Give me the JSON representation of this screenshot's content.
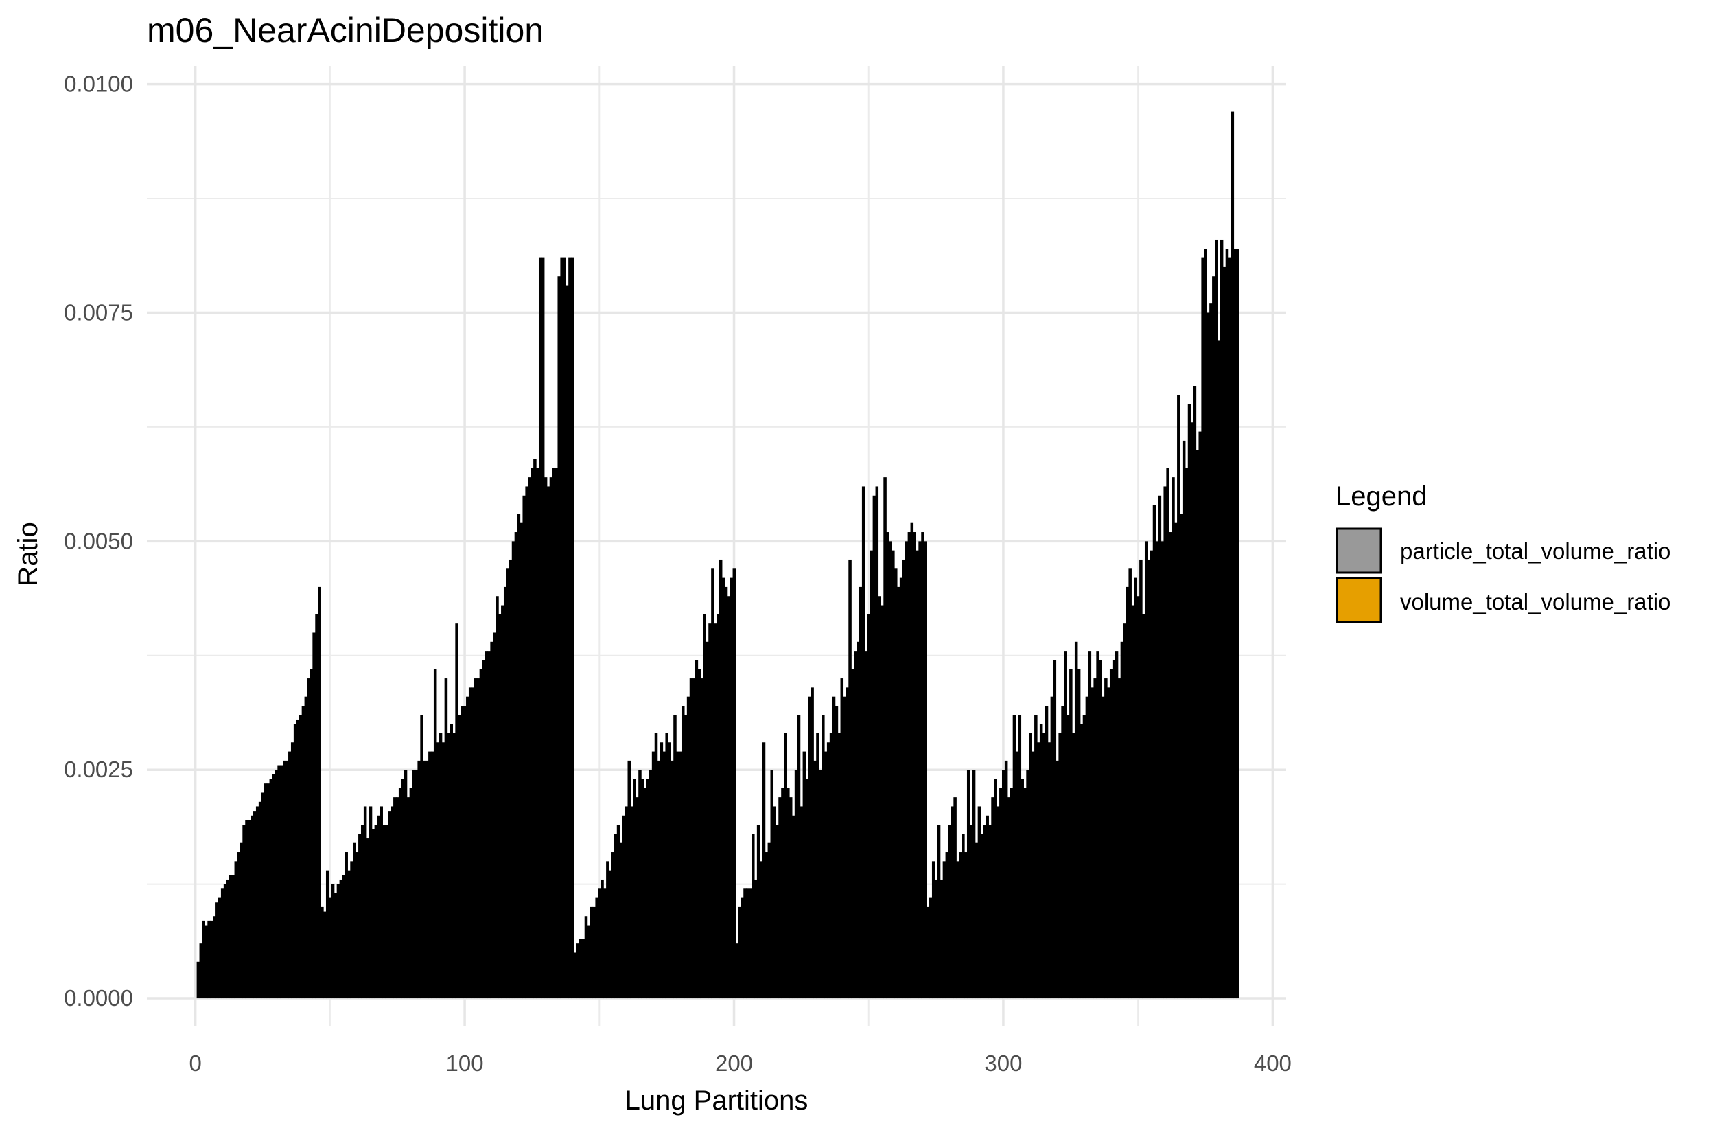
{
  "chart_data": {
    "type": "bar",
    "title": "m06_NearAciniDeposition",
    "xlabel": "Lung Partitions",
    "ylabel": "Ratio",
    "xlim": [
      -18,
      405
    ],
    "ylim": [
      -0.0003,
      0.0102
    ],
    "x_ticks": [
      0,
      100,
      200,
      300,
      400
    ],
    "x_tick_labels": [
      "0",
      "100",
      "200",
      "300",
      "400"
    ],
    "y_ticks": [
      0,
      0.0025,
      0.005,
      0.0075,
      0.01
    ],
    "y_tick_labels": [
      "0.0000",
      "0.0025",
      "0.0050",
      "0.0075",
      "0.0100"
    ],
    "grid": true,
    "legend": {
      "title": "Legend",
      "position": "right",
      "entries": [
        {
          "label": "particle_total_volume_ratio",
          "color": "#999999"
        },
        {
          "label": "volume_total_volume_ratio",
          "color": "#E69F00"
        }
      ]
    },
    "bar_color": "#000000",
    "n_bars": 387,
    "segments": [
      {
        "x_start": 1,
        "x_end": 46,
        "y_start": 0.0004,
        "y_end": 0.0045,
        "values": [
          0.0004,
          0.0006,
          0.00085,
          0.0008,
          0.00085,
          0.00085,
          0.0009,
          0.00105,
          0.0011,
          0.0012,
          0.00125,
          0.0013,
          0.00135,
          0.00135,
          0.0015,
          0.0016,
          0.0017,
          0.0019,
          0.00195,
          0.00195,
          0.002,
          0.00205,
          0.0021,
          0.00215,
          0.00225,
          0.00235,
          0.00235,
          0.0024,
          0.00245,
          0.0025,
          0.00255,
          0.00255,
          0.0026,
          0.0026,
          0.0027,
          0.0028,
          0.003,
          0.00305,
          0.0031,
          0.0032,
          0.0033,
          0.0035,
          0.0036,
          0.004,
          0.0042,
          0.0045
        ]
      },
      {
        "x_start": 47,
        "x_end": 140,
        "y_start": 0.001,
        "y_end": 0.0081,
        "values": [
          0.001,
          0.00095,
          0.0014,
          0.0011,
          0.00125,
          0.00115,
          0.00125,
          0.0013,
          0.00135,
          0.0016,
          0.0014,
          0.0015,
          0.0017,
          0.0016,
          0.0018,
          0.0019,
          0.0021,
          0.00175,
          0.0021,
          0.00185,
          0.0019,
          0.002,
          0.0021,
          0.0019,
          0.0019,
          0.00205,
          0.0021,
          0.0022,
          0.0022,
          0.0023,
          0.0024,
          0.0025,
          0.0022,
          0.0023,
          0.0025,
          0.0025,
          0.0026,
          0.0031,
          0.0026,
          0.0026,
          0.0027,
          0.0027,
          0.0036,
          0.0028,
          0.0029,
          0.0028,
          0.0035,
          0.0029,
          0.003,
          0.0029,
          0.0041,
          0.0031,
          0.0032,
          0.0032,
          0.0033,
          0.0034,
          0.0034,
          0.0035,
          0.0035,
          0.0036,
          0.0037,
          0.0038,
          0.0038,
          0.0039,
          0.004,
          0.0044,
          0.0042,
          0.0043,
          0.0045,
          0.0047,
          0.0048,
          0.005,
          0.0051,
          0.0053,
          0.0052,
          0.0055,
          0.0056,
          0.0057,
          0.0058,
          0.0059,
          0.0058,
          0.0081,
          0.0081,
          0.0057,
          0.0056,
          0.0057,
          0.0058,
          0.0058,
          0.0079,
          0.0081,
          0.0081,
          0.0078,
          0.0081,
          0.0081
        ]
      },
      {
        "x_start": 141,
        "x_end": 200,
        "y_start": 0.0005,
        "y_end": 0.0048,
        "values": [
          0.0005,
          0.0006,
          0.00065,
          0.00065,
          0.0009,
          0.0008,
          0.001,
          0.001,
          0.0011,
          0.0012,
          0.0013,
          0.0012,
          0.0015,
          0.0014,
          0.0016,
          0.0018,
          0.0019,
          0.0017,
          0.002,
          0.0021,
          0.0026,
          0.0021,
          0.0024,
          0.0022,
          0.0025,
          0.0024,
          0.0023,
          0.0024,
          0.0025,
          0.0027,
          0.0029,
          0.0026,
          0.0028,
          0.0027,
          0.0029,
          0.0028,
          0.0026,
          0.0031,
          0.0027,
          0.0027,
          0.0032,
          0.0031,
          0.0033,
          0.0035,
          0.0035,
          0.0037,
          0.0036,
          0.0035,
          0.0042,
          0.0039,
          0.0041,
          0.0047,
          0.0041,
          0.0042,
          0.0048,
          0.0046,
          0.0045,
          0.0044,
          0.0046,
          0.0047
        ]
      },
      {
        "x_start": 201,
        "x_end": 271,
        "y_start": 0.0006,
        "y_end": 0.0057,
        "values": [
          0.0006,
          0.001,
          0.0011,
          0.0012,
          0.0012,
          0.0012,
          0.0018,
          0.0013,
          0.0019,
          0.0015,
          0.0028,
          0.0016,
          0.0017,
          0.0025,
          0.0021,
          0.0019,
          0.0022,
          0.0023,
          0.0029,
          0.0023,
          0.0022,
          0.002,
          0.0025,
          0.0031,
          0.0021,
          0.0027,
          0.0024,
          0.0033,
          0.0034,
          0.0026,
          0.0029,
          0.0025,
          0.0031,
          0.0027,
          0.0028,
          0.0029,
          0.0033,
          0.0032,
          0.0029,
          0.0035,
          0.0033,
          0.0034,
          0.0048,
          0.0036,
          0.0038,
          0.0039,
          0.0045,
          0.0056,
          0.0038,
          0.0042,
          0.0049,
          0.0055,
          0.0056,
          0.0044,
          0.0043,
          0.0057,
          0.0051,
          0.005,
          0.0049,
          0.0047,
          0.0045,
          0.0046,
          0.0048,
          0.005,
          0.0051,
          0.0052,
          0.0051,
          0.0049,
          0.005,
          0.0051,
          0.005
        ]
      },
      {
        "x_start": 272,
        "x_end": 387,
        "y_start": 0.001,
        "y_end": 0.0097,
        "values": [
          0.001,
          0.0011,
          0.0015,
          0.0013,
          0.0019,
          0.0013,
          0.0015,
          0.0016,
          0.0019,
          0.0021,
          0.0022,
          0.0015,
          0.0016,
          0.0018,
          0.0016,
          0.0025,
          0.0019,
          0.0025,
          0.0017,
          0.0021,
          0.0018,
          0.0019,
          0.002,
          0.0019,
          0.0022,
          0.0024,
          0.0021,
          0.0023,
          0.0025,
          0.0026,
          0.0022,
          0.0023,
          0.0031,
          0.0027,
          0.0031,
          0.0024,
          0.0023,
          0.0025,
          0.0029,
          0.0027,
          0.0031,
          0.0028,
          0.003,
          0.0029,
          0.0032,
          0.0028,
          0.0033,
          0.0037,
          0.0026,
          0.0029,
          0.0032,
          0.0038,
          0.0031,
          0.0036,
          0.0029,
          0.0039,
          0.0036,
          0.003,
          0.0031,
          0.0033,
          0.0038,
          0.0034,
          0.0035,
          0.0038,
          0.0037,
          0.0033,
          0.0035,
          0.0034,
          0.0036,
          0.0037,
          0.0038,
          0.0035,
          0.0039,
          0.0041,
          0.0045,
          0.0047,
          0.0043,
          0.0046,
          0.0044,
          0.0048,
          0.0042,
          0.005,
          0.0048,
          0.0049,
          0.0054,
          0.005,
          0.0055,
          0.005,
          0.0056,
          0.0058,
          0.0051,
          0.0057,
          0.0052,
          0.0066,
          0.0053,
          0.0061,
          0.0058,
          0.0065,
          0.0063,
          0.0067,
          0.006,
          0.0062,
          0.0081,
          0.0082,
          0.0075,
          0.0076,
          0.0079,
          0.0083,
          0.0072,
          0.0083,
          0.008,
          0.0082,
          0.0081,
          0.0097,
          0.0082,
          0.0082
        ]
      }
    ]
  }
}
